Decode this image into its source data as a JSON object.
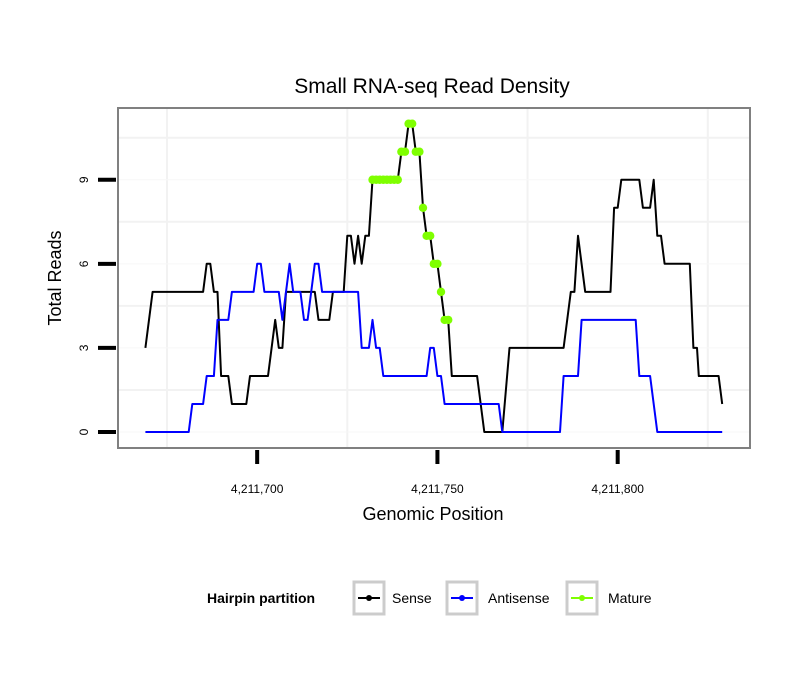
{
  "chart_data": {
    "type": "line",
    "title": "Small RNA-seq Read Density",
    "xlabel": "Genomic Position",
    "ylabel": "Total Reads",
    "xlim": [
      4211661.4,
      4211836.7
    ],
    "ylim": [
      -0.57,
      11.56
    ],
    "x_ticks": [
      4211700,
      4211750,
      4211800
    ],
    "x_tick_labels": [
      "4,211,700",
      "4,211,750",
      "4,211,800"
    ],
    "y_ticks": [
      0,
      3,
      6,
      9
    ],
    "y_tick_labels": [
      "0",
      "3",
      "6",
      "9"
    ],
    "grid": true,
    "legend": {
      "title": "Hairpin partition",
      "position": "bottom",
      "entries": [
        {
          "label": "Sense",
          "color": "#000000"
        },
        {
          "label": "Antisense",
          "color": "#0000ff"
        },
        {
          "label": "Mature",
          "color": "#7fff00"
        }
      ]
    },
    "series": [
      {
        "name": "Sense",
        "color": "#000000",
        "points": [
          [
            4211669,
            3
          ],
          [
            4211671,
            5
          ],
          [
            4211685,
            5
          ],
          [
            4211686,
            6
          ],
          [
            4211687,
            6
          ],
          [
            4211688,
            5
          ],
          [
            4211689,
            5
          ],
          [
            4211690,
            2
          ],
          [
            4211692,
            2
          ],
          [
            4211693,
            1
          ],
          [
            4211697,
            1
          ],
          [
            4211698,
            2
          ],
          [
            4211703,
            2
          ],
          [
            4211705,
            4
          ],
          [
            4211706,
            3
          ],
          [
            4211707,
            3
          ],
          [
            4211708,
            5
          ],
          [
            4211716,
            5
          ],
          [
            4211717,
            4
          ],
          [
            4211720,
            4
          ],
          [
            4211721,
            5
          ],
          [
            4211724,
            5
          ],
          [
            4211725,
            7
          ],
          [
            4211726,
            7
          ],
          [
            4211727,
            6
          ],
          [
            4211728,
            7
          ],
          [
            4211729,
            6
          ],
          [
            4211730,
            7
          ],
          [
            4211731,
            7
          ],
          [
            4211732,
            9
          ],
          [
            4211739,
            9
          ],
          [
            4211740,
            10
          ],
          [
            4211741,
            10
          ],
          [
            4211742,
            11
          ],
          [
            4211743,
            11
          ],
          [
            4211744,
            10
          ],
          [
            4211745,
            10
          ],
          [
            4211746,
            8
          ],
          [
            4211747,
            7
          ],
          [
            4211748,
            7
          ],
          [
            4211749,
            6
          ],
          [
            4211750,
            6
          ],
          [
            4211751,
            5
          ],
          [
            4211752,
            4
          ],
          [
            4211753,
            4
          ],
          [
            4211754,
            2
          ],
          [
            4211761,
            2
          ],
          [
            4211763,
            0
          ],
          [
            4211768,
            0
          ],
          [
            4211770,
            3
          ],
          [
            4211785,
            3
          ],
          [
            4211787,
            5
          ],
          [
            4211788,
            5
          ],
          [
            4211789,
            7
          ],
          [
            4211791,
            5
          ],
          [
            4211798,
            5
          ],
          [
            4211799,
            8
          ],
          [
            4211800,
            8
          ],
          [
            4211801,
            9
          ],
          [
            4211806,
            9
          ],
          [
            4211807,
            8
          ],
          [
            4211809,
            8
          ],
          [
            4211810,
            9
          ],
          [
            4211811,
            7
          ],
          [
            4211812,
            7
          ],
          [
            4211813,
            6
          ],
          [
            4211820,
            6
          ],
          [
            4211821,
            3
          ],
          [
            4211822,
            3
          ],
          [
            4211822.5,
            2
          ],
          [
            4211828,
            2
          ],
          [
            4211829,
            1
          ]
        ]
      },
      {
        "name": "Antisense",
        "color": "#0000ff",
        "points": [
          [
            4211669,
            0
          ],
          [
            4211681,
            0
          ],
          [
            4211682,
            1
          ],
          [
            4211685,
            1
          ],
          [
            4211686,
            2
          ],
          [
            4211688,
            2
          ],
          [
            4211689,
            4
          ],
          [
            4211692,
            4
          ],
          [
            4211693,
            5
          ],
          [
            4211699,
            5
          ],
          [
            4211700,
            6
          ],
          [
            4211701,
            6
          ],
          [
            4211702,
            5
          ],
          [
            4211706,
            5
          ],
          [
            4211707,
            4
          ],
          [
            4211708,
            5
          ],
          [
            4211709,
            6
          ],
          [
            4211710,
            5
          ],
          [
            4211712,
            5
          ],
          [
            4211713,
            4
          ],
          [
            4211714,
            4
          ],
          [
            4211715,
            5
          ],
          [
            4211716,
            6
          ],
          [
            4211717,
            6
          ],
          [
            4211718,
            5
          ],
          [
            4211728,
            5
          ],
          [
            4211729,
            3
          ],
          [
            4211731,
            3
          ],
          [
            4211732,
            4
          ],
          [
            4211733,
            3
          ],
          [
            4211734,
            3
          ],
          [
            4211735,
            2
          ],
          [
            4211747,
            2
          ],
          [
            4211748,
            3
          ],
          [
            4211749,
            3
          ],
          [
            4211750,
            2
          ],
          [
            4211751,
            2
          ],
          [
            4211752,
            1
          ],
          [
            4211767,
            1
          ],
          [
            4211768,
            0
          ],
          [
            4211784,
            0
          ],
          [
            4211785,
            2
          ],
          [
            4211789,
            2
          ],
          [
            4211790,
            4
          ],
          [
            4211805,
            4
          ],
          [
            4211806,
            2
          ],
          [
            4211809,
            2
          ],
          [
            4211811,
            0
          ],
          [
            4211829,
            0
          ]
        ]
      },
      {
        "name": "Mature",
        "color": "#7fff00",
        "points": [
          [
            4211732,
            9
          ],
          [
            4211733,
            9
          ],
          [
            4211734,
            9
          ],
          [
            4211735,
            9
          ],
          [
            4211736,
            9
          ],
          [
            4211737,
            9
          ],
          [
            4211738,
            9
          ],
          [
            4211739,
            9
          ],
          [
            4211740,
            10
          ],
          [
            4211741,
            10
          ],
          [
            4211742,
            11
          ],
          [
            4211743,
            11
          ],
          [
            4211744,
            10
          ],
          [
            4211745,
            10
          ],
          [
            4211746,
            8
          ],
          [
            4211747,
            7
          ],
          [
            4211748,
            7
          ],
          [
            4211749,
            6
          ],
          [
            4211750,
            6
          ],
          [
            4211751,
            5
          ],
          [
            4211752,
            4
          ],
          [
            4211753,
            4
          ]
        ]
      }
    ]
  }
}
